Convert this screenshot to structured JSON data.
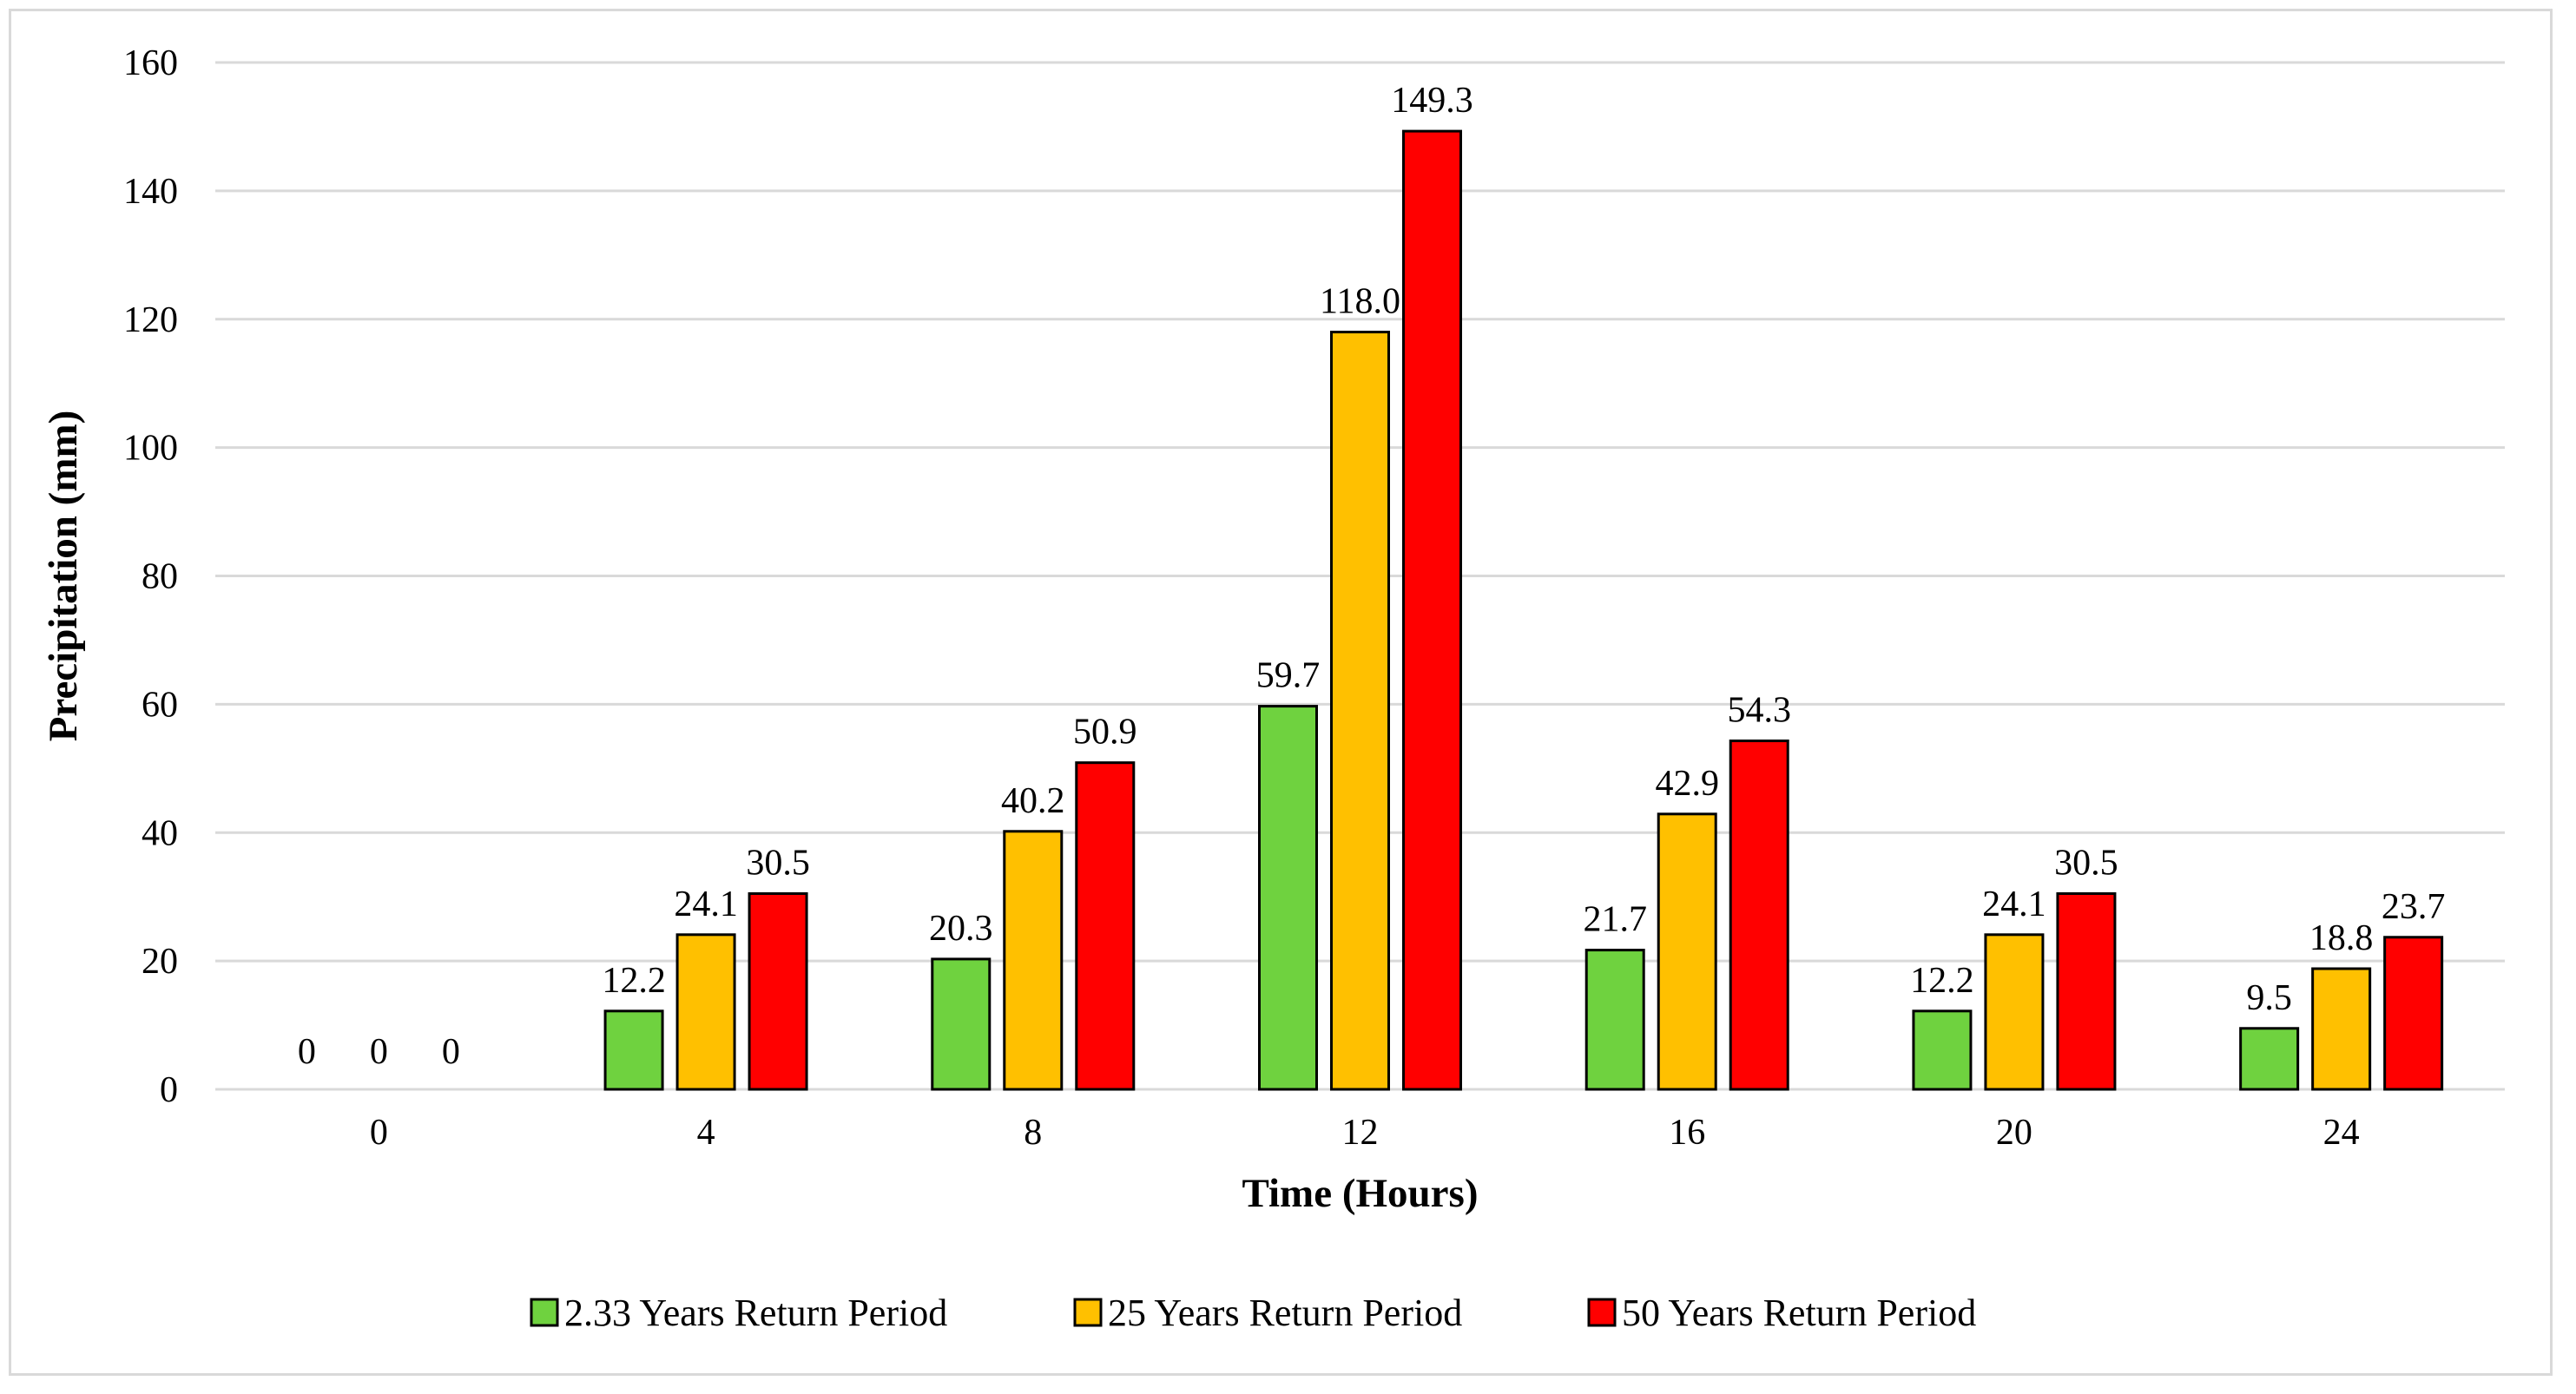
{
  "chart_data": {
    "type": "bar",
    "title": "",
    "xlabel": "Time (Hours)",
    "ylabel": "Precipitation (mm)",
    "categories": [
      "0",
      "4",
      "8",
      "12",
      "16",
      "20",
      "24"
    ],
    "ylim": [
      0,
      160
    ],
    "yticks": [
      "0",
      "20",
      "40",
      "60",
      "80",
      "100",
      "120",
      "140",
      "160"
    ],
    "grid": true,
    "legend_position": "bottom",
    "series": [
      {
        "name": "2.33 Years Return Period",
        "color": "#6fd23f",
        "values": [
          0,
          12.2,
          20.3,
          59.7,
          21.7,
          12.2,
          9.5
        ],
        "labels": [
          "0",
          "12.2",
          "20.3",
          "59.7",
          "21.7",
          "12.2",
          "9.5"
        ]
      },
      {
        "name": "25 Years Return Period",
        "color": "#ffc000",
        "values": [
          0,
          24.1,
          40.2,
          118.0,
          42.9,
          24.1,
          18.8
        ],
        "labels": [
          "0",
          "24.1",
          "40.2",
          "118.0",
          "42.9",
          "24.1",
          "18.8"
        ]
      },
      {
        "name": "50 Years Return Period",
        "color": "#ff0000",
        "values": [
          0,
          30.5,
          50.9,
          149.3,
          54.3,
          30.5,
          23.7
        ],
        "labels": [
          "0",
          "30.5",
          "50.9",
          "149.3",
          "54.3",
          "30.5",
          "23.7"
        ]
      }
    ]
  }
}
